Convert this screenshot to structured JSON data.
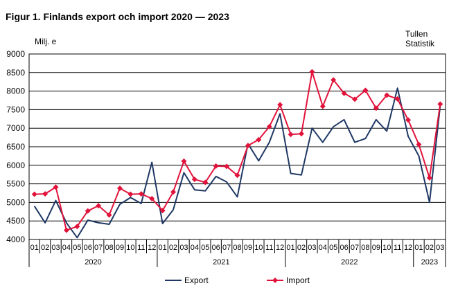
{
  "title": "Figur 1. Finlands export och import 2020 — 2023",
  "source": [
    "Tullen",
    "Statistik"
  ],
  "chart_data": {
    "type": "line",
    "ylabel": "Milj. e",
    "xlabel": "",
    "ylim": [
      4000,
      9000
    ],
    "yticks": [
      4000,
      4500,
      5000,
      5500,
      6000,
      6500,
      7000,
      7500,
      8000,
      8500,
      9000
    ],
    "grid": "horizontal",
    "legend_position": "bottom",
    "years": [
      {
        "label": "2020",
        "months": 12
      },
      {
        "label": "2021",
        "months": 12
      },
      {
        "label": "2022",
        "months": 12
      },
      {
        "label": "2023",
        "months": 3
      }
    ],
    "categories": [
      "01",
      "02",
      "03",
      "04",
      "05",
      "06",
      "07",
      "08",
      "09",
      "10",
      "11",
      "12",
      "01",
      "02",
      "03",
      "04",
      "05",
      "06",
      "07",
      "08",
      "09",
      "10",
      "11",
      "12",
      "01",
      "02",
      "03",
      "04",
      "05",
      "06",
      "07",
      "08",
      "09",
      "10",
      "11",
      "12",
      "01",
      "02",
      "03"
    ],
    "series": [
      {
        "name": "Export",
        "color": "#1f3864",
        "marker": "none",
        "values": [
          4900,
          4450,
          5050,
          4450,
          4050,
          4520,
          4450,
          4410,
          4950,
          5130,
          4970,
          6080,
          4430,
          4800,
          5800,
          5340,
          5310,
          5700,
          5550,
          5150,
          6580,
          6120,
          6620,
          7390,
          5780,
          5740,
          7000,
          6620,
          7040,
          7230,
          6620,
          6720,
          7230,
          6920,
          8080,
          6780,
          6250,
          5000,
          7600
        ]
      },
      {
        "name": "Import",
        "color": "#e2133b",
        "marker": "diamond",
        "values": [
          5220,
          5230,
          5410,
          4250,
          4350,
          4770,
          4910,
          4660,
          5380,
          5220,
          5230,
          5100,
          4780,
          5280,
          6110,
          5620,
          5540,
          5980,
          5970,
          5730,
          6530,
          6690,
          7040,
          7630,
          6830,
          6850,
          8520,
          7590,
          8300,
          7940,
          7780,
          8020,
          7540,
          7890,
          7790,
          7220,
          6560,
          5660,
          7650
        ]
      }
    ]
  }
}
